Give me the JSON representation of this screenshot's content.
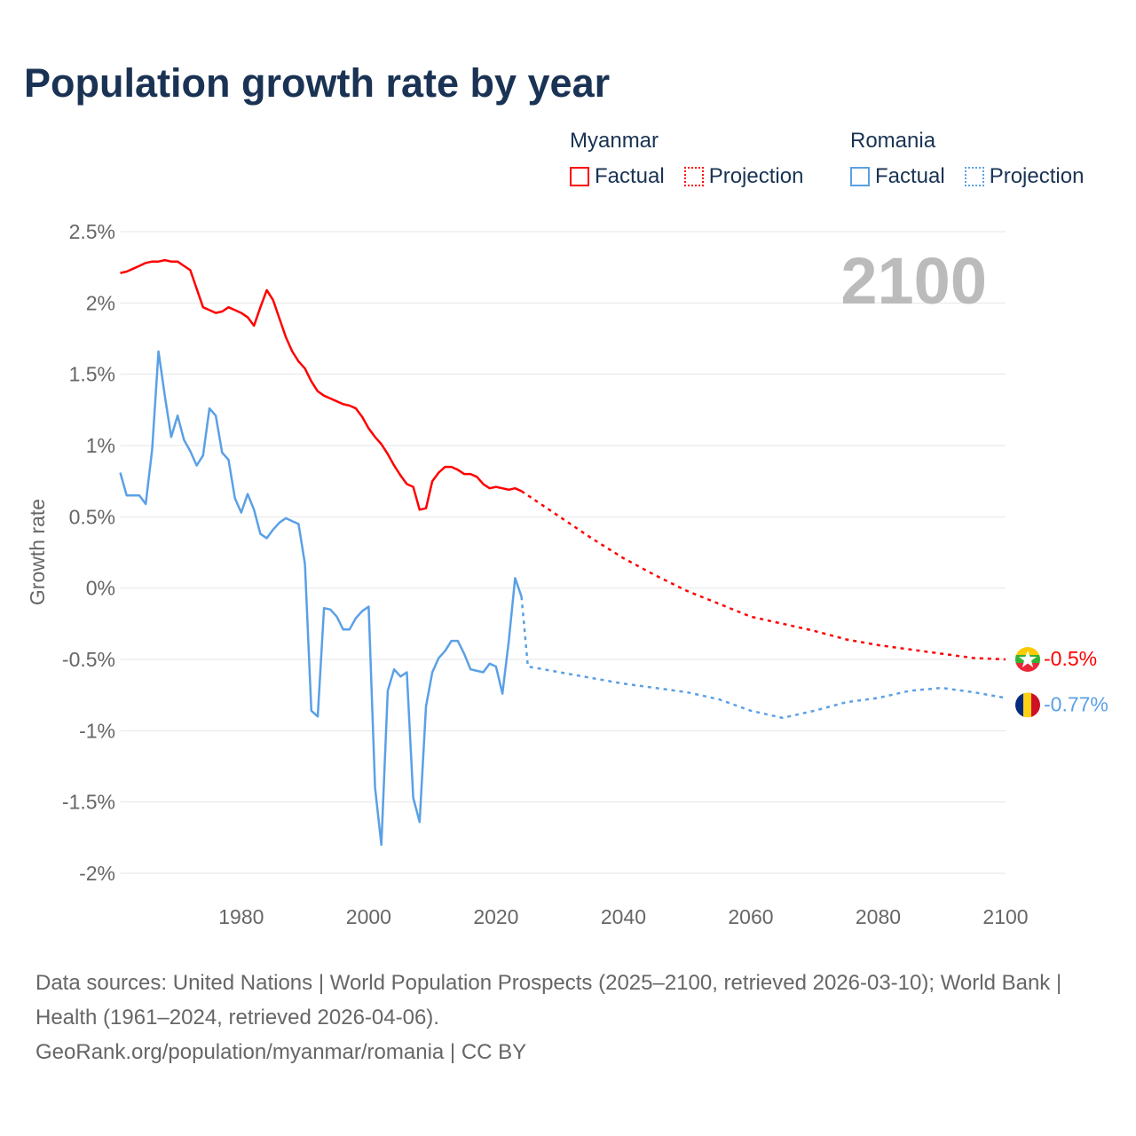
{
  "title": "Population growth rate by year",
  "legend": {
    "groups": [
      {
        "country": "Myanmar",
        "color": "#ff0000",
        "factual": "Factual",
        "projection": "Projection"
      },
      {
        "country": "Romania",
        "color": "#5aa0e6",
        "factual": "Factual",
        "projection": "Projection"
      }
    ]
  },
  "year_label": "2100",
  "end_labels": {
    "myanmar": "-0.5%",
    "romania": "-0.77%"
  },
  "flags": {
    "myanmar": "myanmar-flag-icon",
    "romania": "romania-flag-icon"
  },
  "footer": {
    "sources": "Data sources: United Nations | World Population Prospects (2025–2100, retrieved 2026-03-10); World Bank | Health (1961–2024, retrieved 2026-04-06).",
    "link": "GeoRank.org/population/myanmar/romania | CC BY"
  },
  "chart_data": {
    "type": "line",
    "title": "Population growth rate by year",
    "xlabel": "",
    "ylabel": "Growth rate",
    "xlim": [
      1961,
      2100
    ],
    "ylim": [
      -2,
      2.5
    ],
    "xticks": [
      1980,
      2000,
      2020,
      2040,
      2060,
      2080,
      2100
    ],
    "yticks": [
      2.5,
      2,
      1.5,
      1,
      0.5,
      0,
      -0.5,
      -1,
      -1.5,
      -2
    ],
    "ytick_labels": [
      "2.5%",
      "2%",
      "1.5%",
      "1%",
      "0.5%",
      "0%",
      "-0.5%",
      "-1%",
      "-1.5%",
      "-2%"
    ],
    "grid": true,
    "legend_position": "top-right",
    "series": [
      {
        "name": "Myanmar Factual",
        "color": "#ff0000",
        "dashed": false,
        "start": 1961,
        "step": 1,
        "values": [
          2.21,
          2.22,
          2.24,
          2.26,
          2.28,
          2.29,
          2.29,
          2.3,
          2.29,
          2.29,
          2.26,
          2.23,
          2.1,
          1.97,
          1.95,
          1.93,
          1.94,
          1.97,
          1.95,
          1.93,
          1.9,
          1.84,
          1.97,
          2.09,
          2.02,
          1.89,
          1.76,
          1.66,
          1.59,
          1.54,
          1.45,
          1.38,
          1.35,
          1.33,
          1.31,
          1.29,
          1.28,
          1.26,
          1.2,
          1.12,
          1.06,
          1.01,
          0.94,
          0.86,
          0.79,
          0.73,
          0.71,
          0.55,
          0.56,
          0.75,
          0.81,
          0.85,
          0.85,
          0.83,
          0.8,
          0.8,
          0.78,
          0.73,
          0.7,
          0.71,
          0.7,
          0.69,
          0.7,
          0.68
        ]
      },
      {
        "name": "Myanmar Projection",
        "color": "#ff0000",
        "dashed": true,
        "x": [
          2024,
          2025,
          2030,
          2035,
          2040,
          2045,
          2050,
          2055,
          2060,
          2065,
          2070,
          2075,
          2080,
          2085,
          2090,
          2095,
          2100
        ],
        "values": [
          0.68,
          0.65,
          0.5,
          0.35,
          0.21,
          0.09,
          -0.02,
          -0.11,
          -0.2,
          -0.25,
          -0.3,
          -0.36,
          -0.4,
          -0.43,
          -0.46,
          -0.49,
          -0.5
        ]
      },
      {
        "name": "Romania Factual",
        "color": "#5aa0e6",
        "dashed": false,
        "start": 1961,
        "step": 1,
        "values": [
          0.81,
          0.65,
          0.65,
          0.65,
          0.59,
          0.97,
          1.66,
          1.35,
          1.06,
          1.21,
          1.04,
          0.96,
          0.86,
          0.93,
          1.26,
          1.21,
          0.95,
          0.9,
          0.63,
          0.53,
          0.66,
          0.55,
          0.38,
          0.35,
          0.41,
          0.46,
          0.49,
          0.47,
          0.45,
          0.17,
          -0.86,
          -0.9,
          -0.14,
          -0.15,
          -0.2,
          -0.29,
          -0.29,
          -0.21,
          -0.16,
          -0.13,
          -1.4,
          -1.8,
          -0.72,
          -0.57,
          -0.62,
          -0.59,
          -1.47,
          -1.64,
          -0.83,
          -0.59,
          -0.49,
          -0.44,
          -0.37,
          -0.37,
          -0.46,
          -0.57,
          -0.58,
          -0.59,
          -0.53,
          -0.55,
          -0.74,
          -0.37,
          0.07,
          -0.06
        ]
      },
      {
        "name": "Romania Projection",
        "color": "#5aa0e6",
        "dashed": true,
        "x": [
          2024,
          2025,
          2030,
          2035,
          2040,
          2045,
          2050,
          2055,
          2060,
          2065,
          2070,
          2075,
          2080,
          2085,
          2090,
          2095,
          2100
        ],
        "values": [
          -0.06,
          -0.55,
          -0.59,
          -0.63,
          -0.67,
          -0.7,
          -0.73,
          -0.78,
          -0.86,
          -0.91,
          -0.86,
          -0.8,
          -0.77,
          -0.72,
          -0.7,
          -0.73,
          -0.77
        ]
      }
    ]
  }
}
